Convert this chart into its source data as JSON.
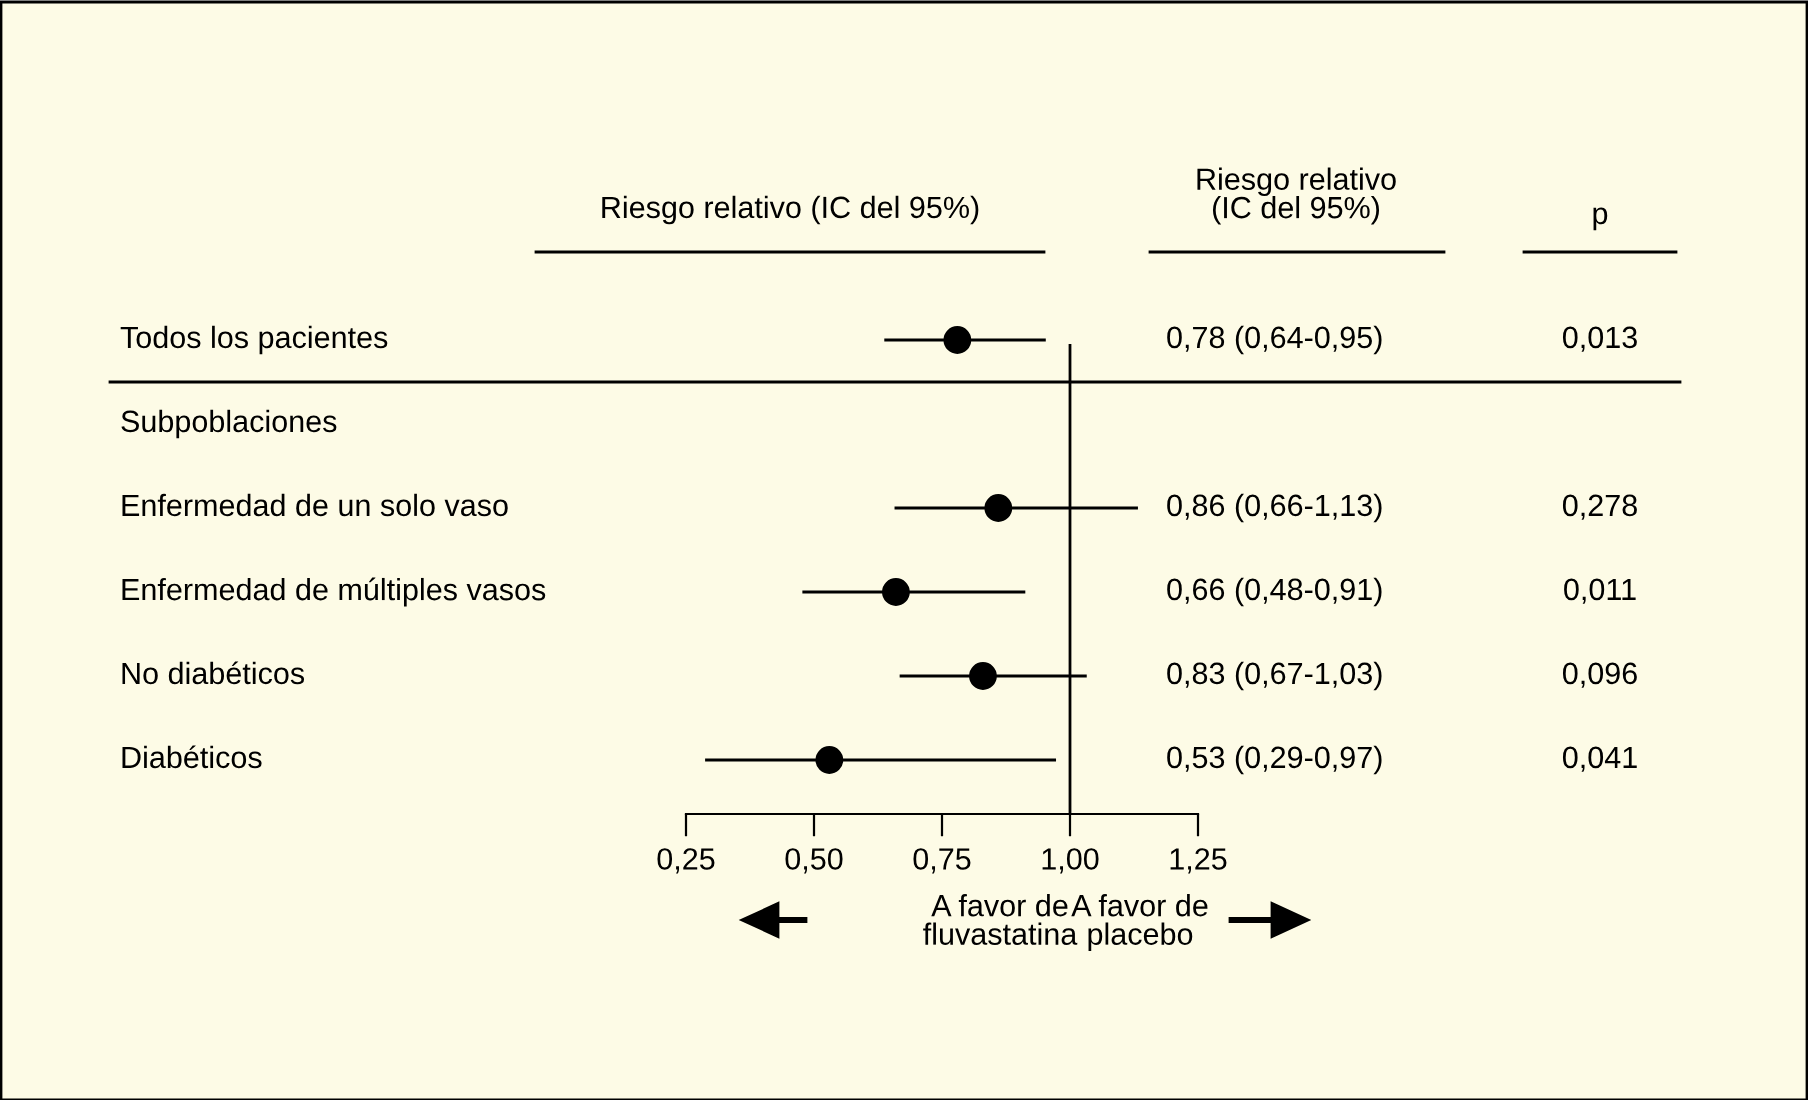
{
  "chart_data": {
    "type": "scatter",
    "orientation": "horizontal",
    "title": "Riesgo relativo (IC del 95%)",
    "categories": [
      "Todos los pacientes",
      "Subpoblaciones",
      "Enfermedad de un solo vaso",
      "Enfermedad de múltiples vasos",
      "No diabéticos",
      "Diabéticos"
    ],
    "values": [
      0.78,
      null,
      0.86,
      0.66,
      0.83,
      0.53
    ],
    "errors": [
      [
        0.64,
        0.95
      ],
      null,
      [
        0.66,
        1.13
      ],
      [
        0.48,
        0.91
      ],
      [
        0.67,
        1.03
      ],
      [
        0.29,
        0.97
      ]
    ],
    "value_labels": [
      "0,78 (0,64-0,95)",
      null,
      "0,86 (0,66-1,13)",
      "0,66 (0,48-0,91)",
      "0,83 (0,67-1,03)",
      "0,53 (0,29-0,97)"
    ],
    "color": "#000000",
    "marker": "circle",
    "grid": false,
    "legend": false,
    "xlim": [
      0.25,
      1.25
    ],
    "xticks": [
      {
        "value": 0.25,
        "label": "0,25"
      },
      {
        "value": 0.5,
        "label": "0,50"
      },
      {
        "value": 0.75,
        "label": "0,75"
      },
      {
        "value": 1.0,
        "label": "1,00"
      },
      {
        "value": 1.25,
        "label": "1,25"
      }
    ],
    "ref_lines": [
      {
        "axis": "x",
        "value": 1.0
      }
    ],
    "annotations": [
      "Riesgo relativo\n(IC del 95%)",
      "p",
      "0,013",
      "0,278",
      "0,011",
      "0,096",
      "0,041",
      "A favor de\nfluvastatina",
      "A favor de\nplacebo"
    ]
  }
}
